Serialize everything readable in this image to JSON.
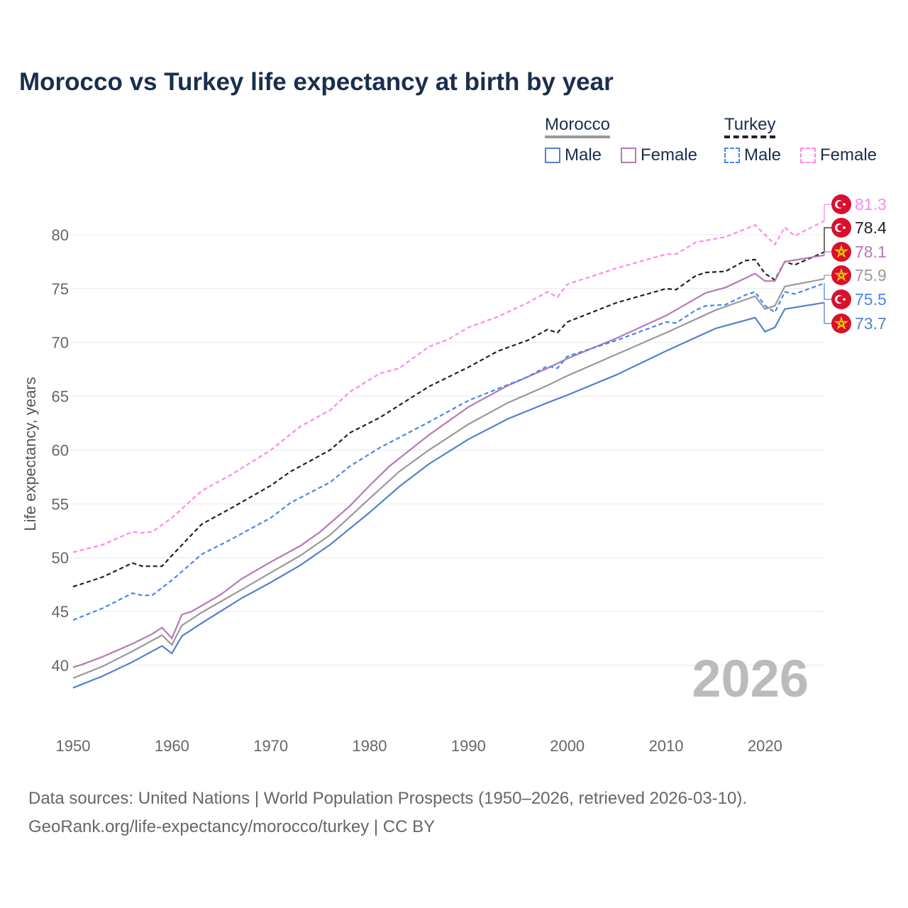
{
  "title": "Morocco vs Turkey life expectancy at birth by year",
  "legend": {
    "groups": [
      {
        "name": "Morocco",
        "color": "#999999"
      },
      {
        "name": "Turkey",
        "color": "#222222"
      }
    ],
    "items": [
      "Male",
      "Female",
      "Male",
      "Female"
    ]
  },
  "year_watermark": "2026",
  "footer": {
    "line1": "Data sources: United Nations | World Population Prospects (1950–2026, retrieved 2026-03-10).",
    "line2": "GeoRank.org/life-expectancy/morocco/turkey | CC BY"
  },
  "chart_data": {
    "type": "line",
    "title": "Morocco vs Turkey life expectancy at birth by year",
    "xlabel": "",
    "ylabel": "Life expectancy, years",
    "xlim": [
      1950,
      2026
    ],
    "ylim": [
      36,
      83
    ],
    "xticks": [
      1950,
      1960,
      1970,
      1980,
      1990,
      2000,
      2010,
      2020
    ],
    "yticks": [
      40,
      45,
      50,
      55,
      60,
      65,
      70,
      75,
      80
    ],
    "grid": true,
    "legend_position": "top-right",
    "series": [
      {
        "name": "Turkey Female",
        "country": "Turkey",
        "color": "#ff88ee",
        "dashed": true,
        "flag": "turkey",
        "end_label": "81.3",
        "x": [
          1950,
          1953,
          1956,
          1957,
          1958,
          1960,
          1963,
          1966,
          1970,
          1973,
          1976,
          1978,
          1981,
          1983,
          1986,
          1988,
          1990,
          1993,
          1996,
          1998,
          1999,
          2000,
          2005,
          2010,
          2011,
          2013,
          2016,
          2019,
          2021,
          2022,
          2023,
          2026
        ],
        "y": [
          50.5,
          51.2,
          52.4,
          52.3,
          52.4,
          53.7,
          56.2,
          57.7,
          60.0,
          62.2,
          63.7,
          65.4,
          67.1,
          67.6,
          69.6,
          70.3,
          71.4,
          72.4,
          73.7,
          74.7,
          74.2,
          75.4,
          76.9,
          78.2,
          78.2,
          79.3,
          79.8,
          80.9,
          79.1,
          80.7,
          79.9,
          81.3
        ]
      },
      {
        "name": "Turkey",
        "country": "Turkey",
        "color": "#222222",
        "dashed": true,
        "flag": "turkey",
        "end_label": "78.4",
        "x": [
          1950,
          1953,
          1956,
          1957,
          1959,
          1960,
          1963,
          1966,
          1970,
          1972,
          1976,
          1978,
          1981,
          1986,
          1990,
          1993,
          1996,
          1998,
          1999,
          2000,
          2005,
          2010,
          2011,
          2013,
          2014,
          2016,
          2018,
          2019,
          2020,
          2021,
          2022,
          2023,
          2026
        ],
        "y": [
          47.3,
          48.2,
          49.5,
          49.2,
          49.2,
          50.2,
          53.1,
          54.6,
          56.7,
          58.0,
          60.0,
          61.6,
          63.0,
          65.9,
          67.7,
          69.2,
          70.2,
          71.2,
          70.9,
          71.9,
          73.7,
          75.0,
          74.9,
          76.2,
          76.5,
          76.6,
          77.6,
          77.7,
          76.4,
          75.8,
          77.5,
          77.2,
          78.4
        ]
      },
      {
        "name": "Morocco Female",
        "country": "Morocco",
        "color": "#b57ab5",
        "dashed": false,
        "flag": "morocco",
        "end_label": "78.1",
        "x": [
          1950,
          1951,
          1953,
          1956,
          1958,
          1959,
          1960,
          1961,
          1962,
          1965,
          1967,
          1970,
          1973,
          1975,
          1978,
          1980,
          1982,
          1986,
          1990,
          1994,
          1998,
          2000,
          2005,
          2010,
          2014,
          2016,
          2019,
          2020,
          2021,
          2022,
          2026
        ],
        "y": [
          39.8,
          40.1,
          40.8,
          42.0,
          42.9,
          43.5,
          42.5,
          44.7,
          45.0,
          46.6,
          48.0,
          49.6,
          51.1,
          52.4,
          54.8,
          56.7,
          58.5,
          61.4,
          64.0,
          66.0,
          67.6,
          68.5,
          70.4,
          72.5,
          74.6,
          75.1,
          76.4,
          75.7,
          75.7,
          77.5,
          78.1
        ]
      },
      {
        "name": "Morocco",
        "country": "Morocco",
        "color": "#999999",
        "dashed": false,
        "flag": "morocco",
        "end_label": "75.9",
        "x": [
          1950,
          1953,
          1956,
          1959,
          1960,
          1961,
          1963,
          1967,
          1970,
          1973,
          1976,
          1980,
          1983,
          1986,
          1990,
          1994,
          1998,
          2000,
          2005,
          2010,
          2015,
          2019,
          2020,
          2021,
          2022,
          2026
        ],
        "y": [
          38.8,
          39.9,
          41.3,
          42.8,
          41.9,
          43.7,
          44.9,
          47.0,
          48.6,
          50.2,
          52.1,
          55.5,
          58.0,
          60.0,
          62.4,
          64.4,
          66.0,
          66.9,
          68.9,
          70.9,
          73.0,
          74.3,
          73.1,
          73.4,
          75.2,
          75.9
        ]
      },
      {
        "name": "Turkey Male",
        "country": "Turkey",
        "color": "#4488ee",
        "dashed": true,
        "flag": "turkey",
        "end_label": "75.5",
        "x": [
          1950,
          1953,
          1956,
          1957,
          1958,
          1960,
          1963,
          1966,
          1970,
          1972,
          1976,
          1978,
          1981,
          1986,
          1990,
          1993,
          1996,
          1998,
          1999,
          2000,
          2005,
          2010,
          2011,
          2013,
          2014,
          2016,
          2018,
          2019,
          2020,
          2021,
          2022,
          2023,
          2026
        ],
        "y": [
          44.2,
          45.3,
          46.7,
          46.5,
          46.5,
          47.9,
          50.3,
          51.7,
          53.7,
          55.1,
          57.0,
          58.5,
          60.2,
          62.6,
          64.6,
          65.7,
          66.8,
          67.8,
          67.6,
          68.7,
          70.2,
          71.9,
          71.8,
          73.0,
          73.4,
          73.5,
          74.4,
          74.7,
          73.4,
          72.8,
          74.7,
          74.5,
          75.5
        ]
      },
      {
        "name": "Morocco Male",
        "country": "Morocco",
        "color": "#5580cc",
        "dashed": false,
        "flag": "morocco",
        "end_label": "73.7",
        "x": [
          1950,
          1953,
          1956,
          1959,
          1960,
          1961,
          1963,
          1967,
          1970,
          1973,
          1976,
          1980,
          1983,
          1986,
          1990,
          1994,
          1998,
          2000,
          2005,
          2010,
          2015,
          2019,
          2020,
          2021,
          2022,
          2026
        ],
        "y": [
          37.9,
          39.0,
          40.3,
          41.8,
          41.1,
          42.7,
          43.9,
          46.2,
          47.7,
          49.3,
          51.2,
          54.2,
          56.6,
          58.7,
          61.0,
          62.9,
          64.4,
          65.1,
          67.0,
          69.2,
          71.3,
          72.3,
          71.0,
          71.4,
          73.1,
          73.7
        ]
      }
    ]
  }
}
